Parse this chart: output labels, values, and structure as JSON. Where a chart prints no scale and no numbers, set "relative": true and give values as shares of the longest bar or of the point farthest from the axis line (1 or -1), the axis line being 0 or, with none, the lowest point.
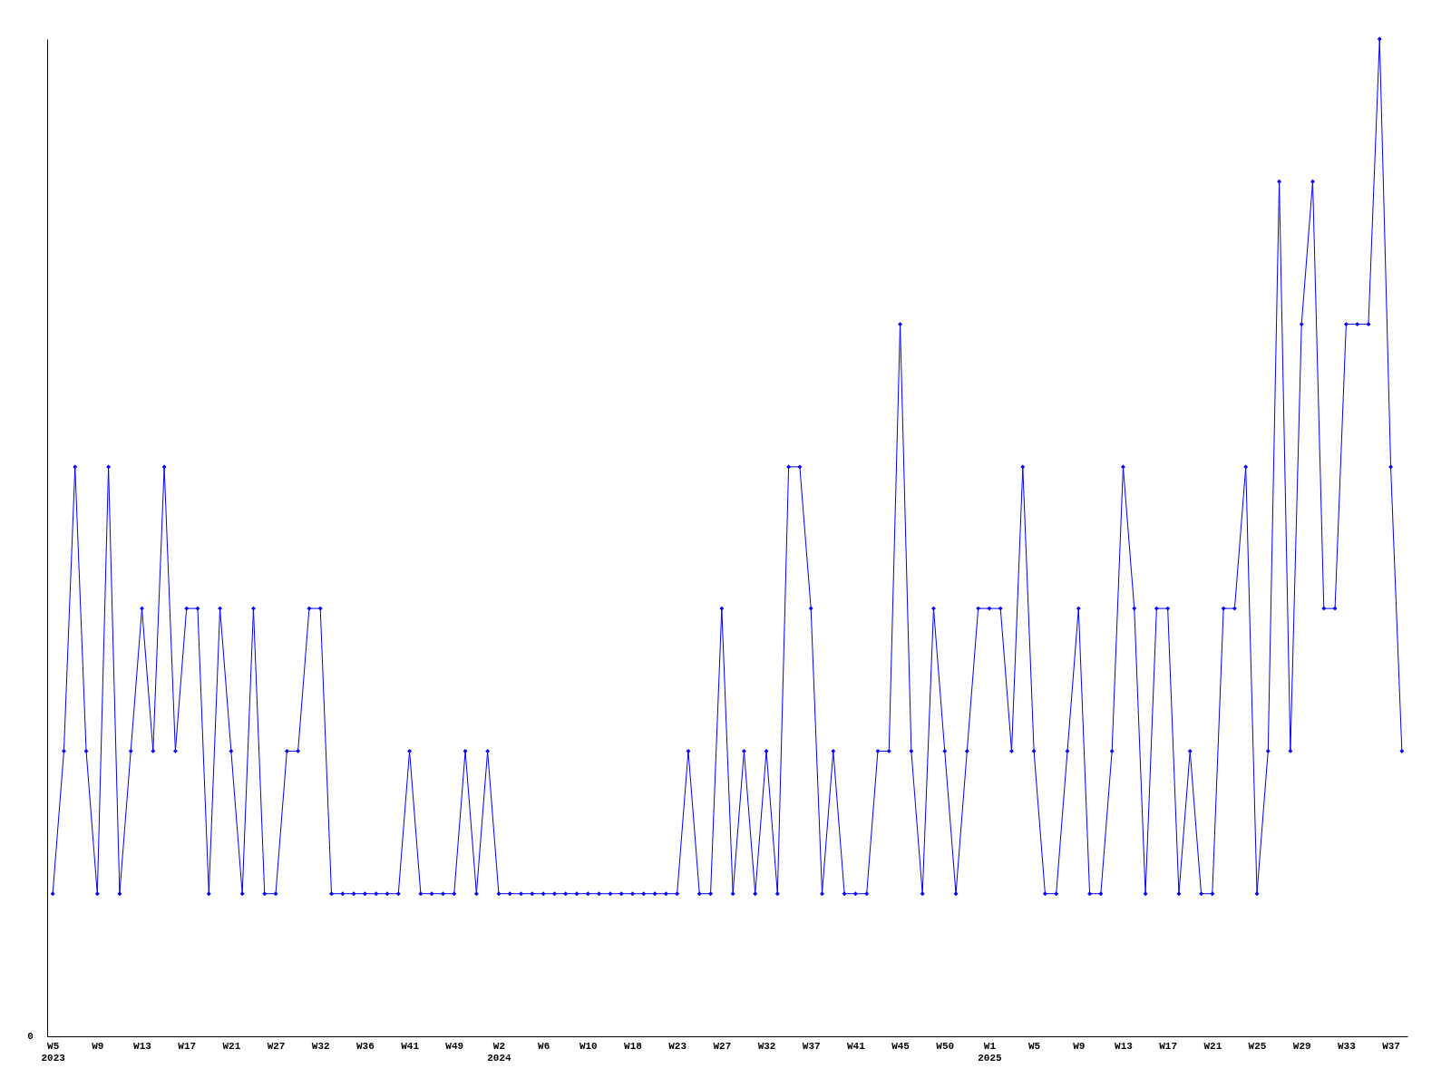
{
  "chart_data": {
    "type": "line",
    "relative": true,
    "categories": [
      "W5\n2023",
      null,
      null,
      null,
      "W9",
      null,
      null,
      null,
      "W13",
      null,
      null,
      null,
      "W17",
      null,
      null,
      null,
      "W21",
      null,
      null,
      null,
      "W27",
      null,
      null,
      null,
      "W32",
      null,
      null,
      null,
      "W36",
      null,
      null,
      null,
      "W41",
      null,
      null,
      null,
      "W49",
      null,
      null,
      null,
      "W2\n2024",
      null,
      null,
      null,
      "W6",
      null,
      null,
      null,
      "W10",
      null,
      null,
      null,
      "W18",
      null,
      null,
      null,
      "W23",
      null,
      null,
      null,
      "W27",
      null,
      null,
      null,
      "W32",
      null,
      null,
      null,
      "W37",
      null,
      null,
      null,
      "W41",
      null,
      null,
      null,
      "W45",
      null,
      null,
      null,
      "W50",
      null,
      null,
      null,
      "W1\n2025",
      null,
      null,
      null,
      "W5",
      null,
      null,
      null,
      "W9",
      null,
      null,
      null,
      "W13",
      null,
      null,
      null,
      "W17",
      null,
      null,
      null,
      "W21",
      null,
      null,
      null,
      "W25",
      null,
      null,
      null,
      "W29",
      null,
      null,
      null,
      "W33",
      null,
      null,
      null,
      "W37",
      null
    ],
    "series": [
      {
        "color": "#0000ff",
        "values": [
          0.143,
          0.286,
          0.571,
          0.286,
          0.143,
          0.571,
          0.143,
          0.286,
          0.429,
          0.286,
          0.571,
          0.286,
          0.429,
          0.429,
          0.143,
          0.429,
          0.286,
          0.143,
          0.429,
          0.143,
          0.143,
          0.286,
          0.286,
          0.429,
          0.429,
          0.143,
          0.143,
          0.143,
          0.143,
          0.143,
          0.143,
          0.143,
          0.286,
          0.143,
          0.143,
          0.143,
          0.143,
          0.286,
          0.143,
          0.286,
          0.143,
          0.143,
          0.143,
          0.143,
          0.143,
          0.143,
          0.143,
          0.143,
          0.143,
          0.143,
          0.143,
          0.143,
          0.143,
          0.143,
          0.143,
          0.143,
          0.143,
          0.286,
          0.143,
          0.143,
          0.429,
          0.143,
          0.286,
          0.143,
          0.286,
          0.143,
          0.571,
          0.571,
          0.429,
          0.143,
          0.286,
          0.143,
          0.143,
          0.143,
          0.286,
          0.286,
          0.714,
          0.286,
          0.143,
          0.429,
          0.286,
          0.143,
          0.286,
          0.429,
          0.429,
          0.429,
          0.286,
          0.571,
          0.286,
          0.143,
          0.143,
          0.286,
          0.429,
          0.143,
          0.143,
          0.286,
          0.571,
          0.429,
          0.143,
          0.429,
          0.429,
          0.143,
          0.286,
          0.143,
          0.143,
          0.429,
          0.429,
          0.571,
          0.143,
          0.286,
          0.857,
          0.286,
          0.714,
          0.857,
          0.429,
          0.429,
          0.714,
          0.714,
          0.714,
          1,
          0.571,
          0.286
        ]
      }
    ],
    "annotations": [
      "0"
    ],
    "marker": "diamond",
    "grid": false,
    "legend": false
  }
}
